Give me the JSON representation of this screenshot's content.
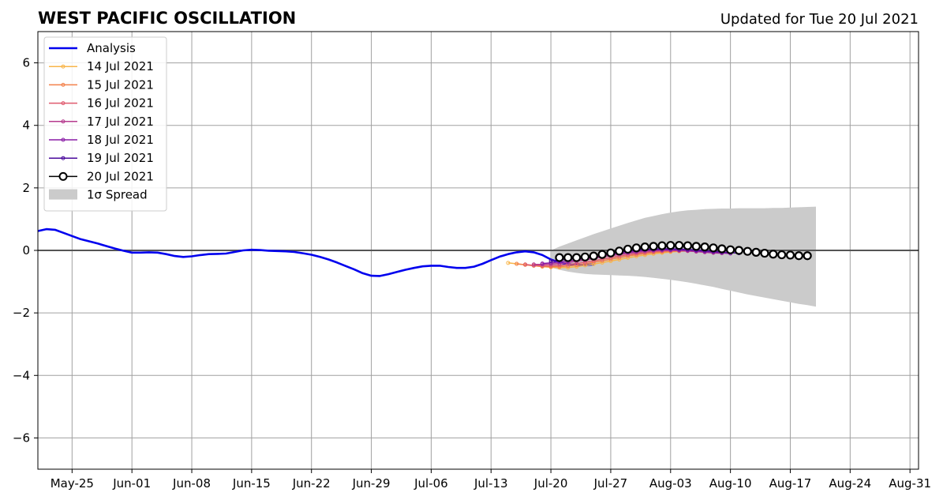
{
  "chart_data": {
    "type": "line",
    "title": "WEST PACIFIC OSCILLATION",
    "subtitle": "Updated for Tue 20 Jul 2021",
    "xlabel": "",
    "ylabel": "",
    "xlim": [
      "2021-05-21",
      "2021-09-01"
    ],
    "ylim": [
      -7,
      7
    ],
    "grid": true,
    "legend_placement": "top-left",
    "x_ticks": [
      "2021-05-25",
      "2021-06-01",
      "2021-06-08",
      "2021-06-15",
      "2021-06-22",
      "2021-06-29",
      "2021-07-06",
      "2021-07-13",
      "2021-07-20",
      "2021-07-27",
      "2021-08-03",
      "2021-08-10",
      "2021-08-17",
      "2021-08-24",
      "2021-08-31"
    ],
    "x_tick_labels": [
      "May-25",
      "Jun-01",
      "Jun-08",
      "Jun-15",
      "Jun-22",
      "Jun-29",
      "Jul-06",
      "Jul-13",
      "Jul-20",
      "Jul-27",
      "Aug-03",
      "Aug-10",
      "Aug-17",
      "Aug-24",
      "Aug-31"
    ],
    "y_ticks": [
      -6,
      -4,
      -2,
      0,
      2,
      4,
      6
    ],
    "y_tick_labels": [
      "−6",
      "−4",
      "−2",
      "0",
      "2",
      "4",
      "6"
    ],
    "analysis": {
      "name": "Analysis",
      "color": "#0000ee",
      "start_date": "2021-05-21",
      "values": [
        0.62,
        0.68,
        0.66,
        0.56,
        0.46,
        0.36,
        0.29,
        0.22,
        0.14,
        0.06,
        -0.01,
        -0.07,
        -0.07,
        -0.06,
        -0.07,
        -0.12,
        -0.18,
        -0.21,
        -0.19,
        -0.15,
        -0.12,
        -0.11,
        -0.1,
        -0.05,
        0.0,
        0.02,
        0.01,
        -0.01,
        -0.02,
        -0.03,
        -0.05,
        -0.09,
        -0.14,
        -0.21,
        -0.29,
        -0.39,
        -0.5,
        -0.61,
        -0.73,
        -0.81,
        -0.82,
        -0.76,
        -0.69,
        -0.62,
        -0.56,
        -0.51,
        -0.49,
        -0.49,
        -0.53,
        -0.56,
        -0.56,
        -0.52,
        -0.43,
        -0.31,
        -0.2,
        -0.12,
        -0.06,
        -0.03,
        -0.06,
        -0.15,
        -0.29,
        -0.39,
        -0.44,
        -0.46,
        -0.47,
        -0.45
      ]
    },
    "forecasts": [
      {
        "name": "14 Jul 2021",
        "color": "#f8b54a",
        "start_date": "2021-07-15",
        "values": [
          -0.4,
          -0.43,
          -0.46,
          -0.49,
          -0.52,
          -0.54,
          -0.55,
          -0.55,
          -0.52,
          -0.48,
          -0.44,
          -0.39,
          -0.34,
          -0.29,
          -0.24,
          -0.19,
          -0.15,
          -0.11,
          -0.08,
          -0.05,
          -0.03,
          -0.02,
          -0.02
        ]
      },
      {
        "name": "15 Jul 2021",
        "color": "#f3814a",
        "start_date": "2021-07-16",
        "values": [
          -0.43,
          -0.46,
          -0.49,
          -0.51,
          -0.52,
          -0.52,
          -0.5,
          -0.47,
          -0.43,
          -0.38,
          -0.33,
          -0.28,
          -0.23,
          -0.18,
          -0.14,
          -0.1,
          -0.07,
          -0.05,
          -0.03,
          -0.02,
          -0.02,
          -0.03,
          -0.04
        ]
      },
      {
        "name": "16 Jul 2021",
        "color": "#df5a6e",
        "start_date": "2021-07-17",
        "values": [
          -0.45,
          -0.48,
          -0.49,
          -0.49,
          -0.48,
          -0.45,
          -0.42,
          -0.38,
          -0.33,
          -0.28,
          -0.23,
          -0.18,
          -0.14,
          -0.1,
          -0.07,
          -0.04,
          -0.02,
          -0.01,
          -0.01,
          -0.02,
          -0.03,
          -0.05,
          -0.06
        ]
      },
      {
        "name": "17 Jul 2021",
        "color": "#b53a8e",
        "start_date": "2021-07-18",
        "values": [
          -0.45,
          -0.45,
          -0.44,
          -0.42,
          -0.39,
          -0.35,
          -0.31,
          -0.26,
          -0.21,
          -0.17,
          -0.13,
          -0.09,
          -0.06,
          -0.03,
          -0.01,
          0.0,
          0.0,
          -0.01,
          -0.02,
          -0.04,
          -0.06,
          -0.08,
          -0.09
        ]
      },
      {
        "name": "18 Jul 2021",
        "color": "#8a1ca6",
        "start_date": "2021-07-19",
        "values": [
          -0.42,
          -0.4,
          -0.37,
          -0.34,
          -0.3,
          -0.26,
          -0.22,
          -0.17,
          -0.13,
          -0.09,
          -0.06,
          -0.03,
          0.0,
          0.01,
          0.02,
          0.02,
          0.01,
          0.0,
          -0.02,
          -0.04,
          -0.06,
          -0.08,
          -0.1
        ]
      },
      {
        "name": "19 Jul 2021",
        "color": "#4a0a9c",
        "start_date": "2021-07-20",
        "values": [
          -0.34,
          -0.31,
          -0.28,
          -0.24,
          -0.2,
          -0.16,
          -0.12,
          -0.08,
          -0.05,
          -0.02,
          0.01,
          0.03,
          0.04,
          0.05,
          0.05,
          0.04,
          0.03,
          0.01,
          -0.01,
          -0.03,
          -0.05,
          -0.07,
          -0.09
        ]
      }
    ],
    "latest_forecast": {
      "name": "20 Jul 2021",
      "color": "#000000",
      "start_date": "2021-07-21",
      "values": [
        -0.23,
        -0.23,
        -0.23,
        -0.21,
        -0.18,
        -0.13,
        -0.08,
        -0.02,
        0.04,
        0.08,
        0.11,
        0.13,
        0.15,
        0.16,
        0.16,
        0.15,
        0.13,
        0.11,
        0.08,
        0.05,
        0.02,
        0.0,
        -0.03,
        -0.06,
        -0.09,
        -0.12,
        -0.14,
        -0.15,
        -0.17,
        -0.17
      ]
    },
    "spread": {
      "name": "1σ Spread",
      "color": "#cbcbcb",
      "start_date": "2021-07-20",
      "upper": [
        0.0,
        0.12,
        0.22,
        0.32,
        0.42,
        0.52,
        0.61,
        0.7,
        0.79,
        0.88,
        0.96,
        1.04,
        1.1,
        1.16,
        1.21,
        1.25,
        1.28,
        1.3,
        1.32,
        1.33,
        1.34,
        1.34,
        1.35,
        1.35,
        1.35,
        1.35,
        1.36,
        1.36,
        1.37,
        1.38,
        1.39,
        1.4
      ],
      "lower": [
        -0.55,
        -0.62,
        -0.68,
        -0.72,
        -0.75,
        -0.77,
        -0.78,
        -0.79,
        -0.8,
        -0.81,
        -0.83,
        -0.85,
        -0.88,
        -0.91,
        -0.94,
        -0.98,
        -1.02,
        -1.07,
        -1.12,
        -1.17,
        -1.23,
        -1.29,
        -1.35,
        -1.41,
        -1.46,
        -1.51,
        -1.56,
        -1.61,
        -1.66,
        -1.71,
        -1.75,
        -1.8
      ]
    }
  }
}
